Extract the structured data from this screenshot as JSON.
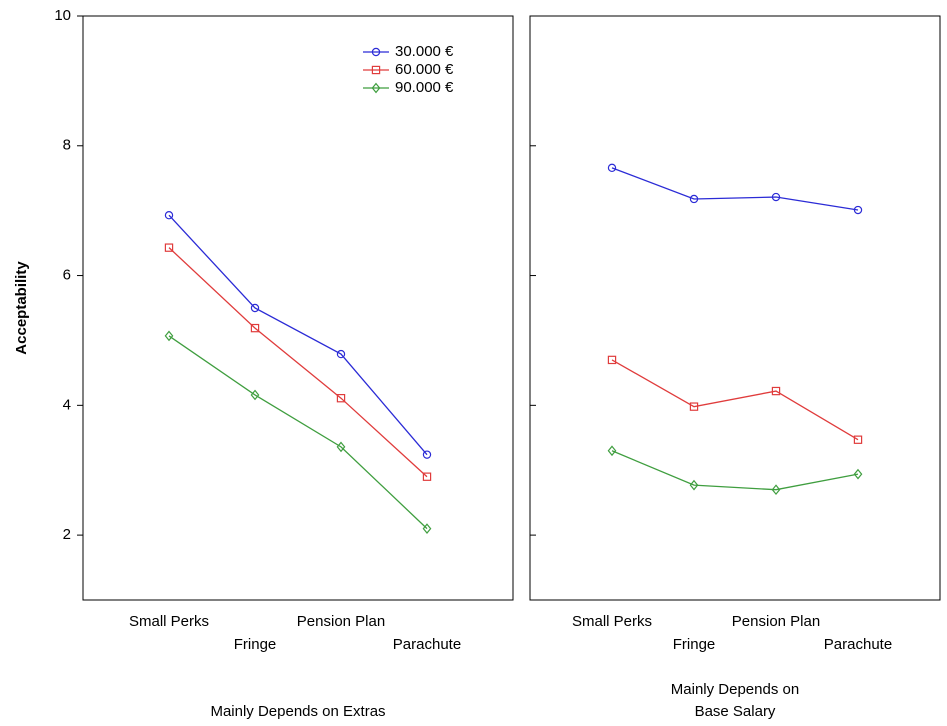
{
  "chart_data": [
    {
      "type": "line",
      "ylabel": "Acceptability",
      "xlabel": [
        "Mainly Depends on Extras"
      ],
      "categories": [
        "Small Perks",
        "Fringe",
        "Pension Plan",
        "Parachute"
      ],
      "ylim": [
        1,
        10
      ],
      "yticks": [
        2,
        4,
        6,
        8,
        10
      ],
      "legend": "upper right",
      "series": [
        {
          "name": "30.000 €",
          "color": "#2b2bd6",
          "marker": "circle",
          "values": [
            6.93,
            5.5,
            4.79,
            3.24
          ]
        },
        {
          "name": "60.000 €",
          "color": "#e03c3c",
          "marker": "square",
          "values": [
            6.43,
            5.19,
            4.11,
            2.9
          ]
        },
        {
          "name": "90.000 €",
          "color": "#3f9e3f",
          "marker": "diamond",
          "values": [
            5.07,
            4.16,
            3.36,
            2.1
          ]
        }
      ]
    },
    {
      "type": "line",
      "xlabel": [
        "Mainly Depends on",
        "Base Salary"
      ],
      "categories": [
        "Small Perks",
        "Fringe",
        "Pension Plan",
        "Parachute"
      ],
      "ylim": [
        1,
        10
      ],
      "yticks": [
        2,
        4,
        6,
        8,
        10
      ],
      "series": [
        {
          "color": "#2b2bd6",
          "marker": "circle",
          "values": [
            7.66,
            7.18,
            7.21,
            7.01
          ]
        },
        {
          "color": "#e03c3c",
          "marker": "square",
          "values": [
            4.7,
            3.98,
            4.22,
            3.47
          ]
        },
        {
          "color": "#3f9e3f",
          "marker": "diamond",
          "values": [
            3.3,
            2.77,
            2.7,
            2.94
          ]
        }
      ]
    }
  ]
}
